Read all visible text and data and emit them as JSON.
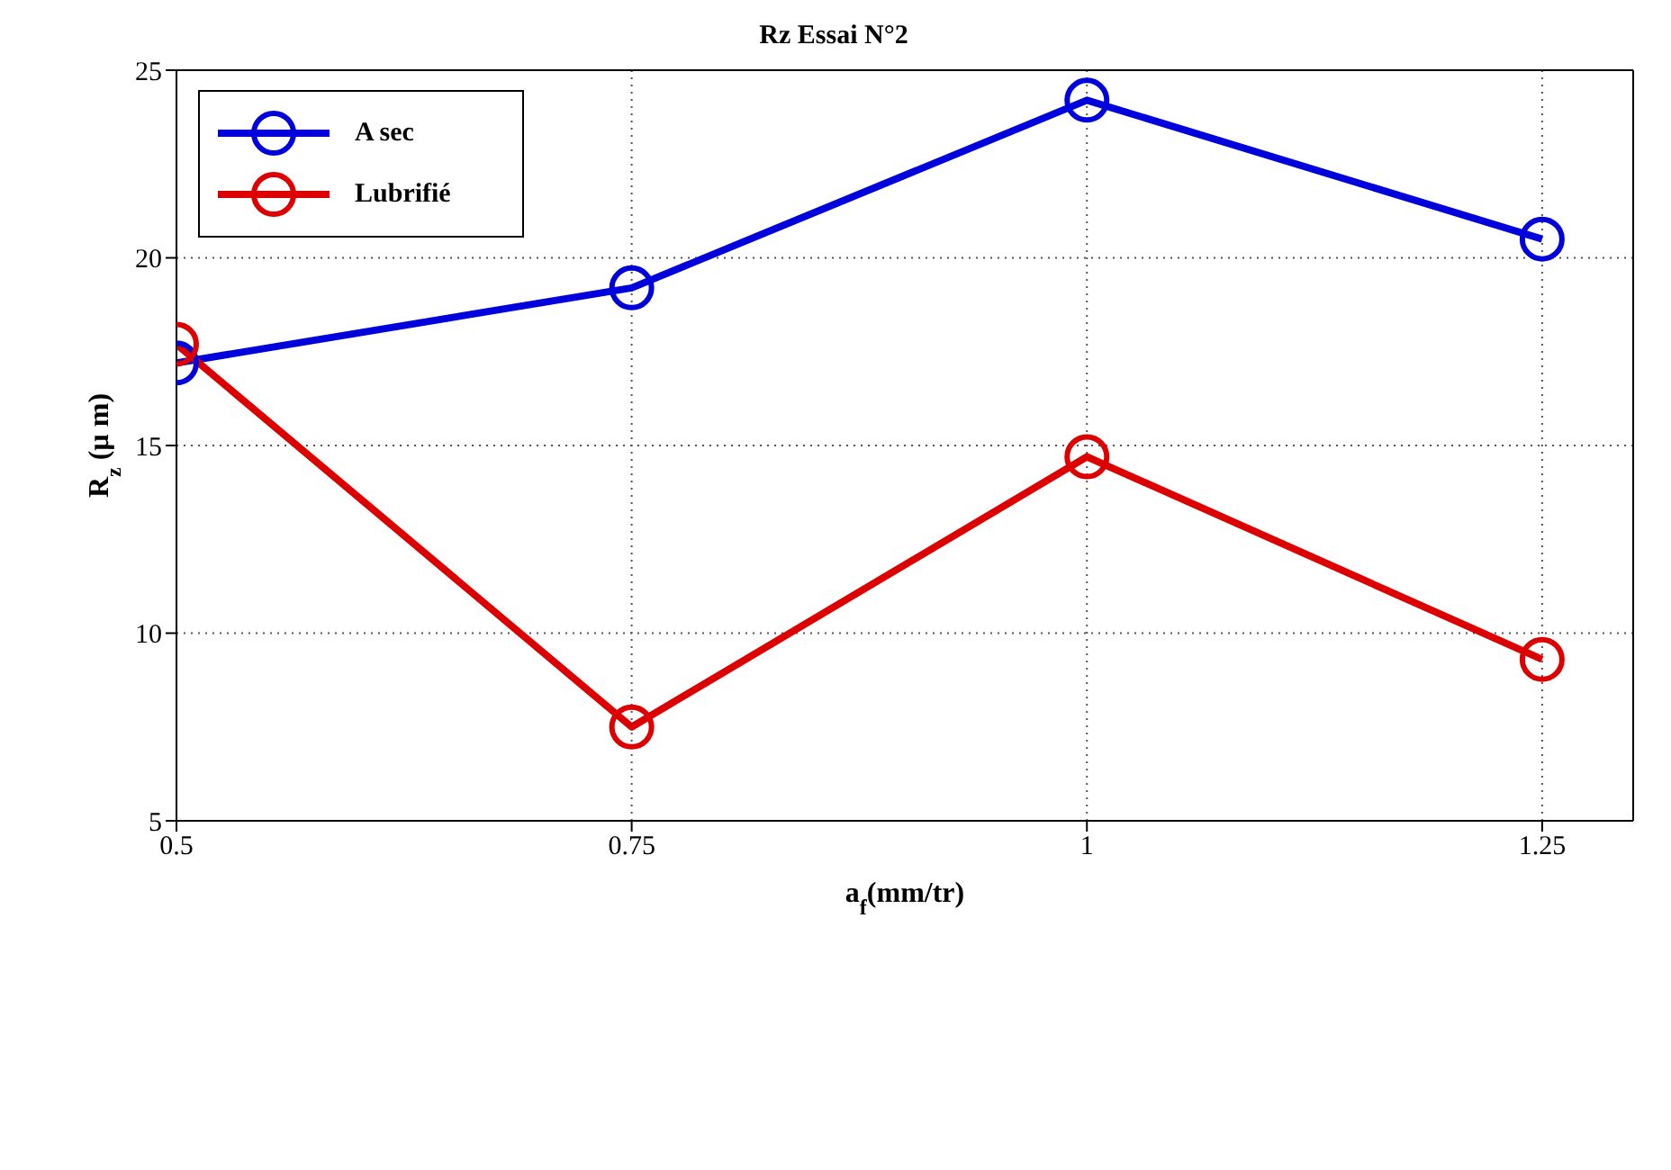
{
  "chart_data": {
    "type": "line",
    "title": "Rz Essai N°2",
    "xlabel": "a$_{f}$(mm/tr)",
    "ylabel": "R$_{z}$ (µ m)",
    "x": [
      0.5,
      0.75,
      1,
      1.25
    ],
    "series": [
      {
        "name": "A sec",
        "color": "#0000dd",
        "values": [
          17.2,
          19.2,
          24.2,
          20.5
        ]
      },
      {
        "name": "Lubrifié",
        "color": "#dd0000",
        "values": [
          17.7,
          7.5,
          14.7,
          9.3
        ]
      }
    ],
    "xlim": [
      0.5,
      1.3
    ],
    "xticks": [
      0.5,
      0.75,
      1,
      1.25
    ],
    "ylim": [
      5,
      25
    ],
    "yticks": [
      5,
      10,
      15,
      20,
      25
    ],
    "grid": true,
    "legend": "top left",
    "marker": "circle",
    "line_style": "solid"
  }
}
